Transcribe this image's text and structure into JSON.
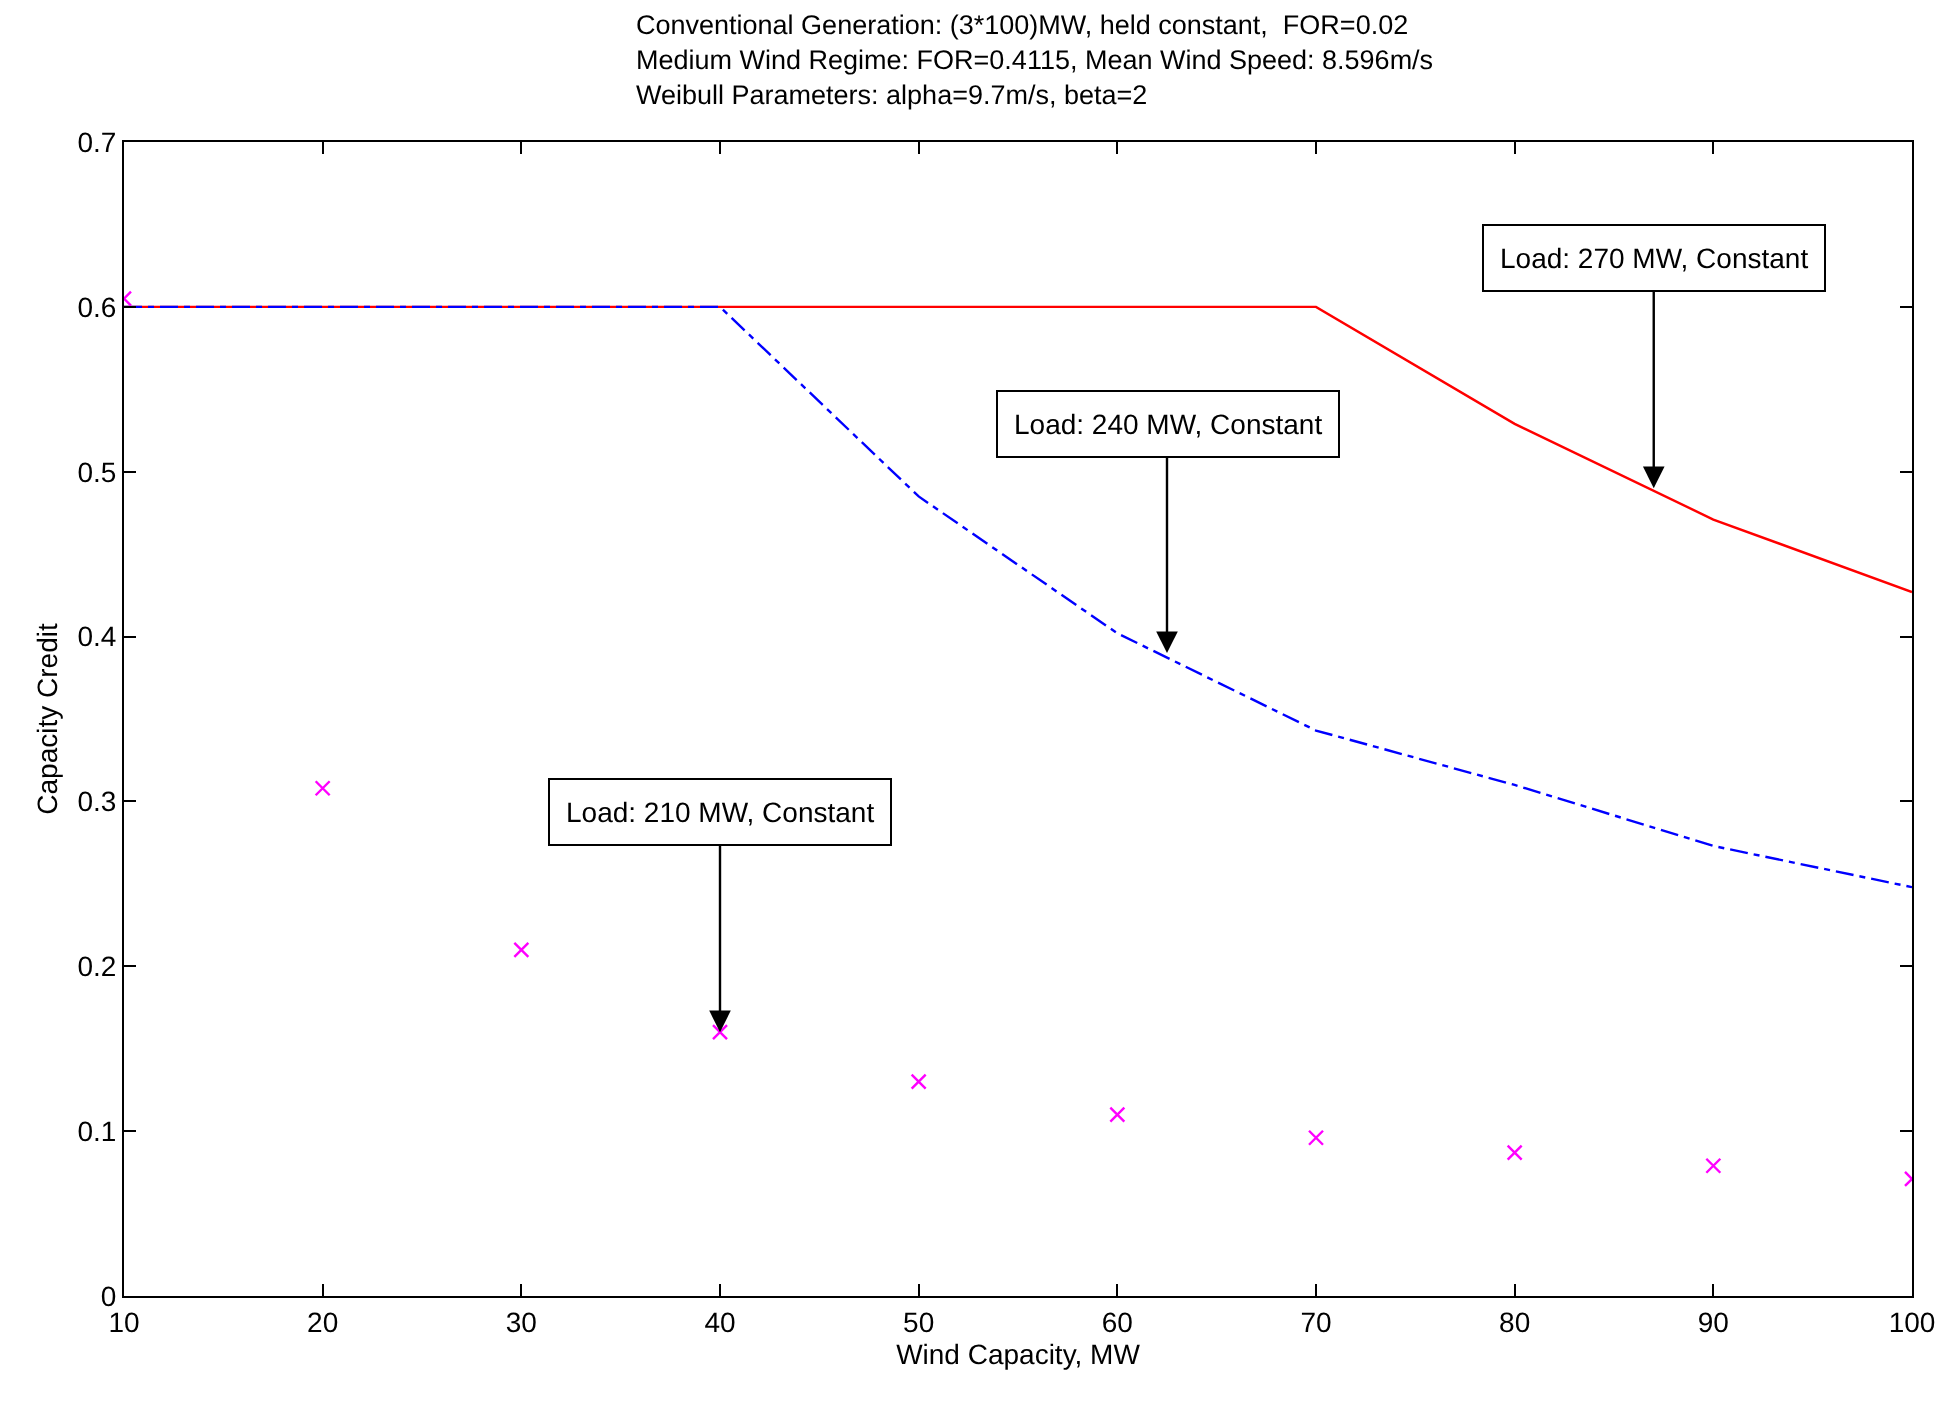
{
  "chart_data": {
    "type": "line",
    "title": "Conventional Generation: (3*100)MW, held constant,  FOR=0.02\nMedium Wind Regime: FOR=0.4115, Mean Wind Speed: 8.596m/s\nWeibull Parameters: alpha=9.7m/s, beta=2",
    "xlabel": "Wind Capacity, MW",
    "ylabel": "Capacity Credit",
    "x": [
      10,
      20,
      30,
      40,
      50,
      60,
      70,
      80,
      90,
      100
    ],
    "series": [
      {
        "color": "#ff0000",
        "line_style": "solid",
        "marker": "none",
        "values": [
          0.6,
          0.6,
          0.6,
          0.6,
          0.6,
          0.6,
          0.6,
          0.529,
          0.471,
          0.427
        ]
      },
      {
        "color": "#0000ff",
        "line_style": "dashed",
        "marker": "none",
        "values": [
          0.6,
          0.6,
          0.6,
          0.6,
          0.485,
          0.402,
          0.343,
          0.31,
          0.273,
          0.248
        ]
      },
      {
        "type": "scatter",
        "color": "#ff00ff",
        "marker": "cross",
        "values": [
          0.605,
          0.308,
          0.21,
          0.16,
          0.13,
          0.11,
          0.096,
          0.087,
          0.079,
          0.071
        ]
      }
    ],
    "annotations": [
      {
        "text": "Load: 270 MW, Constant",
        "x": 87,
        "y": 0.49
      },
      {
        "text": "Load: 240 MW, Constant",
        "x": 62.5,
        "y": 0.39
      },
      {
        "text": "Load: 210 MW, Constant",
        "x": 40,
        "y": 0.16
      }
    ],
    "xlim": [
      10,
      100
    ],
    "xticks": [
      10,
      20,
      30,
      40,
      50,
      60,
      70,
      80,
      90,
      100
    ],
    "ylim": [
      0,
      0.7
    ],
    "yticks": [
      0,
      0.1,
      0.2,
      0.3,
      0.4,
      0.5,
      0.6,
      0.7
    ]
  }
}
